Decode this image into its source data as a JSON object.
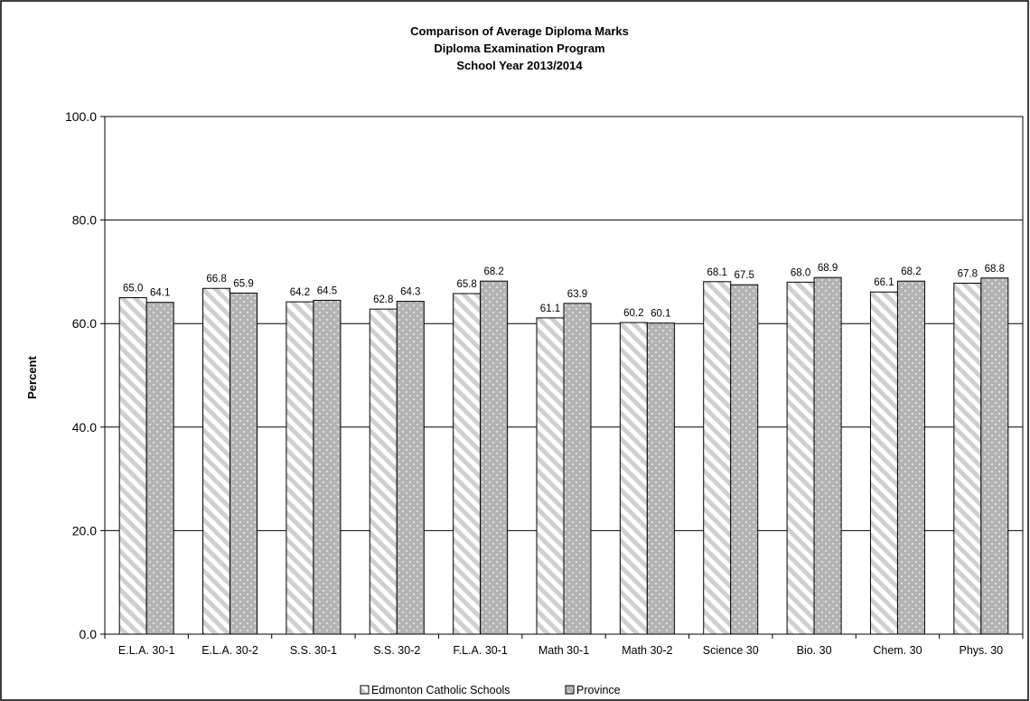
{
  "chart_data": {
    "type": "bar",
    "title": [
      "Comparison of Average Diploma Marks",
      "Diploma Examination Program",
      "School Year 2013/2014"
    ],
    "ylabel": "Percent",
    "xlabel": "",
    "ylim": [
      0,
      100
    ],
    "yticks": [
      "0.0",
      "20.0",
      "40.0",
      "60.0",
      "80.0",
      "100.0"
    ],
    "gridlines": true,
    "legend_position": "bottom",
    "categories": [
      "E.L.A. 30-1",
      "E.L.A. 30-2",
      "S.S. 30-1",
      "S.S. 30-2",
      "F.L.A. 30-1",
      "Math 30-1",
      "Math 30-2",
      "Science 30",
      "Bio. 30",
      "Chem. 30",
      "Phys. 30"
    ],
    "series": [
      {
        "name": "Edmonton Catholic Schools",
        "values": [
          65.0,
          66.8,
          64.2,
          62.8,
          65.8,
          61.1,
          60.2,
          68.1,
          68.0,
          66.1,
          67.8
        ],
        "labels": [
          "65.0",
          "66.8",
          "64.2",
          "62.8",
          "65.8",
          "61.1",
          "60.2",
          "68.1",
          "68.0",
          "66.1",
          "67.8"
        ],
        "pattern": "diagonal-stripes",
        "color": "#c8c8c8"
      },
      {
        "name": "Province",
        "values": [
          64.1,
          65.9,
          64.5,
          64.3,
          68.2,
          63.9,
          60.1,
          67.5,
          68.9,
          68.2,
          68.8
        ],
        "labels": [
          "64.1",
          "65.9",
          "64.5",
          "64.3",
          "68.2",
          "63.9",
          "60.1",
          "67.5",
          "68.9",
          "68.2",
          "68.8"
        ],
        "pattern": "dots",
        "color": "#b3b3b3"
      }
    ]
  }
}
